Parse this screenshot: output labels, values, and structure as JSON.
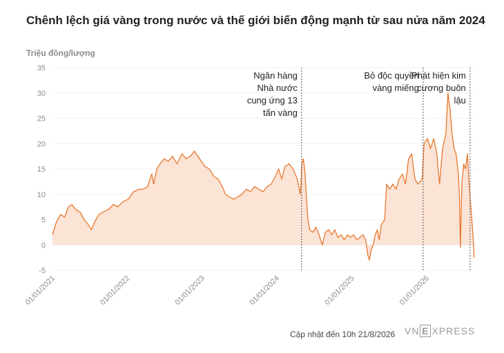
{
  "title": "Chênh lệch giá vàng trong nước và thế giới biến động mạnh từ sau nửa năm 2024",
  "footer": "Cập nhật đến 10h 21/8/2026",
  "logo": {
    "left": "VN",
    "box": "E",
    "right": "XPRESS"
  },
  "colors": {
    "line": "#e8782e",
    "area": "#fbe3d6",
    "zero": "#e6e6e6",
    "grid": "#f2f2f2",
    "annotation_line": "#555555"
  },
  "chart_data": {
    "type": "area",
    "ylabel": "Triệu đồng/lượng",
    "ylim": [
      -5,
      35
    ],
    "yticks": [
      35,
      30,
      25,
      20,
      15,
      10,
      5,
      0,
      -5
    ],
    "xlim": [
      "2021-01-01",
      "2026-09-01"
    ],
    "xticks": [
      {
        "date": "2021-01-01",
        "label": "01/01/2021"
      },
      {
        "date": "2022-01-01",
        "label": "01/01/2022"
      },
      {
        "date": "2023-01-01",
        "label": "01/01/2023"
      },
      {
        "date": "2024-01-01",
        "label": "01/01/2024"
      },
      {
        "date": "2025-01-01",
        "label": "01/01/2025"
      },
      {
        "date": "2026-01-01",
        "label": "01/01/2026"
      }
    ],
    "annotations": [
      {
        "date": "2024-05-01",
        "lines": [
          "Ngân hàng",
          "Nhà nước",
          "cung ứng 13",
          "tấn vàng"
        ],
        "anchor": "end"
      },
      {
        "date": "2025-12-15",
        "lines": [
          "Bỏ độc quyền",
          "vàng miếng"
        ],
        "anchor": "end"
      },
      {
        "date": "2026-08-01",
        "lines": [
          "Phát hiện kim",
          "cương buôn",
          "lậu"
        ],
        "anchor": "end"
      }
    ],
    "series": [
      {
        "points": [
          [
            "2021-01-01",
            2
          ],
          [
            "2021-01-20",
            4.5
          ],
          [
            "2021-02-10",
            6
          ],
          [
            "2021-03-01",
            5.5
          ],
          [
            "2021-03-20",
            7.5
          ],
          [
            "2021-04-05",
            8
          ],
          [
            "2021-04-25",
            7
          ],
          [
            "2021-05-15",
            6.5
          ],
          [
            "2021-06-05",
            5
          ],
          [
            "2021-06-25",
            4
          ],
          [
            "2021-07-10",
            3
          ],
          [
            "2021-07-25",
            4.5
          ],
          [
            "2021-08-15",
            6
          ],
          [
            "2021-09-05",
            6.5
          ],
          [
            "2021-10-01",
            7
          ],
          [
            "2021-10-25",
            8
          ],
          [
            "2021-11-15",
            7.5
          ],
          [
            "2021-12-10",
            8.5
          ],
          [
            "2022-01-05",
            9
          ],
          [
            "2022-02-01",
            10.5
          ],
          [
            "2022-03-01",
            11
          ],
          [
            "2022-03-20",
            11
          ],
          [
            "2022-04-10",
            11.5
          ],
          [
            "2022-05-01",
            14
          ],
          [
            "2022-05-10",
            12
          ],
          [
            "2022-05-25",
            15
          ],
          [
            "2022-06-10",
            16
          ],
          [
            "2022-07-01",
            17
          ],
          [
            "2022-07-20",
            16.5
          ],
          [
            "2022-08-10",
            17.5
          ],
          [
            "2022-09-01",
            16
          ],
          [
            "2022-09-25",
            18
          ],
          [
            "2022-10-15",
            17
          ],
          [
            "2022-11-05",
            17.5
          ],
          [
            "2022-11-25",
            18.5
          ],
          [
            "2022-12-20",
            17
          ],
          [
            "2023-01-15",
            15.5
          ],
          [
            "2023-02-05",
            15
          ],
          [
            "2023-03-01",
            13.5
          ],
          [
            "2023-03-20",
            13
          ],
          [
            "2023-04-10",
            11.5
          ],
          [
            "2023-04-25",
            10
          ],
          [
            "2023-05-15",
            9.5
          ],
          [
            "2023-06-05",
            9
          ],
          [
            "2023-06-25",
            9.5
          ],
          [
            "2023-07-15",
            10
          ],
          [
            "2023-08-05",
            11
          ],
          [
            "2023-08-25",
            10.5
          ],
          [
            "2023-09-15",
            11.5
          ],
          [
            "2023-10-05",
            11
          ],
          [
            "2023-10-25",
            10.5
          ],
          [
            "2023-11-15",
            11.5
          ],
          [
            "2023-12-05",
            12
          ],
          [
            "2023-12-25",
            13.5
          ],
          [
            "2024-01-10",
            15
          ],
          [
            "2024-01-25",
            13
          ],
          [
            "2024-02-10",
            15.5
          ],
          [
            "2024-03-01",
            16
          ],
          [
            "2024-03-20",
            15
          ],
          [
            "2024-04-10",
            13
          ],
          [
            "2024-04-25",
            10
          ],
          [
            "2024-05-02",
            16
          ],
          [
            "2024-05-10",
            17
          ],
          [
            "2024-05-18",
            14
          ],
          [
            "2024-05-25",
            9
          ],
          [
            "2024-06-01",
            5
          ],
          [
            "2024-06-10",
            3
          ],
          [
            "2024-06-25",
            2.5
          ],
          [
            "2024-07-10",
            3.5
          ],
          [
            "2024-07-25",
            2
          ],
          [
            "2024-08-10",
            0
          ],
          [
            "2024-08-25",
            2.5
          ],
          [
            "2024-09-10",
            3
          ],
          [
            "2024-09-25",
            2
          ],
          [
            "2024-10-10",
            3
          ],
          [
            "2024-10-25",
            1.5
          ],
          [
            "2024-11-10",
            2
          ],
          [
            "2024-11-25",
            1
          ],
          [
            "2024-12-10",
            2
          ],
          [
            "2024-12-25",
            1.5
          ],
          [
            "2025-01-10",
            2
          ],
          [
            "2025-01-25",
            1
          ],
          [
            "2025-02-10",
            1.5
          ],
          [
            "2025-02-25",
            2
          ],
          [
            "2025-03-10",
            1
          ],
          [
            "2025-03-20",
            -2
          ],
          [
            "2025-03-28",
            -3
          ],
          [
            "2025-04-05",
            -1
          ],
          [
            "2025-04-15",
            0
          ],
          [
            "2025-04-25",
            2
          ],
          [
            "2025-05-05",
            3
          ],
          [
            "2025-05-15",
            1
          ],
          [
            "2025-05-25",
            4
          ],
          [
            "2025-06-10",
            5
          ],
          [
            "2025-06-20",
            12
          ],
          [
            "2025-07-05",
            11
          ],
          [
            "2025-07-20",
            12
          ],
          [
            "2025-08-05",
            11
          ],
          [
            "2025-08-20",
            13
          ],
          [
            "2025-09-05",
            14
          ],
          [
            "2025-09-20",
            12
          ],
          [
            "2025-10-05",
            17
          ],
          [
            "2025-10-20",
            18
          ],
          [
            "2025-11-05",
            13
          ],
          [
            "2025-11-20",
            12
          ],
          [
            "2025-12-10",
            13
          ],
          [
            "2025-12-20",
            20
          ],
          [
            "2026-01-05",
            21
          ],
          [
            "2026-01-20",
            19
          ],
          [
            "2026-02-05",
            21
          ],
          [
            "2026-02-20",
            18
          ],
          [
            "2026-03-05",
            12
          ],
          [
            "2026-03-20",
            19
          ],
          [
            "2026-04-05",
            22
          ],
          [
            "2026-04-15",
            30
          ],
          [
            "2026-04-25",
            27
          ],
          [
            "2026-05-05",
            22
          ],
          [
            "2026-05-15",
            19
          ],
          [
            "2026-05-25",
            18
          ],
          [
            "2026-06-05",
            14
          ],
          [
            "2026-06-10",
            10
          ],
          [
            "2026-06-15",
            -0.5
          ],
          [
            "2026-06-22",
            12
          ],
          [
            "2026-07-01",
            16
          ],
          [
            "2026-07-10",
            15
          ],
          [
            "2026-07-20",
            18
          ],
          [
            "2026-07-26",
            13
          ],
          [
            "2026-08-02",
            9
          ],
          [
            "2026-08-08",
            6
          ],
          [
            "2026-08-13",
            3
          ],
          [
            "2026-08-17",
            1
          ],
          [
            "2026-08-21",
            -2.5
          ]
        ]
      }
    ]
  }
}
